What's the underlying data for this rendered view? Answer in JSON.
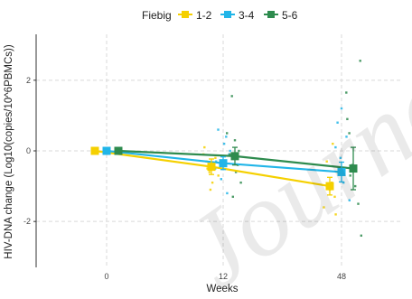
{
  "chart_data": {
    "type": "line",
    "title": "",
    "xlabel": "Weeks",
    "ylabel": "HIV-DNA change (Log10(copies/10^6PBMCs))",
    "x_categories": [
      "0",
      "12",
      "48"
    ],
    "ylim": [
      -3.3,
      3.3
    ],
    "y_ticks": [
      -2,
      0,
      2
    ],
    "grid": true,
    "legend": {
      "title": "Fiebig",
      "position": "top"
    },
    "series": [
      {
        "name": "1-2",
        "color": "#F5D000",
        "means": [
          0,
          -0.45,
          -1.0
        ],
        "err": [
          0,
          0.22,
          0.25
        ],
        "jitter_points": [
          [
            12,
            -0.1
          ],
          [
            12,
            -0.3
          ],
          [
            12,
            -0.6
          ],
          [
            12,
            -0.9
          ],
          [
            12,
            -0.2
          ],
          [
            12,
            -0.7
          ],
          [
            12,
            0.1
          ],
          [
            12,
            -0.5
          ],
          [
            12,
            -1.1
          ],
          [
            48,
            -0.9
          ],
          [
            48,
            -1.3
          ],
          [
            48,
            -0.6
          ],
          [
            48,
            -1.6
          ],
          [
            48,
            -0.3
          ],
          [
            48,
            -1.1
          ],
          [
            48,
            0.2
          ],
          [
            48,
            -1.8
          ]
        ]
      },
      {
        "name": "3-4",
        "color": "#21B5E8",
        "means": [
          0,
          -0.35,
          -0.6
        ],
        "err": [
          0,
          0.18,
          0.28
        ],
        "jitter_points": [
          [
            12,
            0.4
          ],
          [
            12,
            -0.1
          ],
          [
            12,
            -0.5
          ],
          [
            12,
            0.6
          ],
          [
            12,
            -0.8
          ],
          [
            12,
            0.2
          ],
          [
            12,
            -1.2
          ],
          [
            12,
            0.0
          ],
          [
            12,
            -0.3
          ],
          [
            48,
            0.8
          ],
          [
            48,
            -0.2
          ],
          [
            48,
            -0.9
          ],
          [
            48,
            0.4
          ],
          [
            48,
            -1.4
          ],
          [
            48,
            0.1
          ],
          [
            48,
            -0.5
          ],
          [
            48,
            1.2
          ]
        ]
      },
      {
        "name": "5-6",
        "color": "#2E8B4E",
        "means": [
          0,
          -0.15,
          -0.5
        ],
        "err": [
          0,
          0.25,
          0.6
        ],
        "jitter_points": [
          [
            12,
            1.55
          ],
          [
            12,
            0.3
          ],
          [
            12,
            -0.4
          ],
          [
            12,
            -0.9
          ],
          [
            12,
            0.5
          ],
          [
            12,
            -0.1
          ],
          [
            12,
            -1.3
          ],
          [
            12,
            -0.6
          ],
          [
            12,
            0.0
          ],
          [
            48,
            2.55
          ],
          [
            48,
            1.65
          ],
          [
            48,
            0.5
          ],
          [
            48,
            -0.4
          ],
          [
            48,
            -1.0
          ],
          [
            48,
            -1.5
          ],
          [
            48,
            -2.4
          ],
          [
            48,
            0.9
          ],
          [
            48,
            -0.7
          ]
        ]
      }
    ]
  },
  "watermark": "Journal"
}
